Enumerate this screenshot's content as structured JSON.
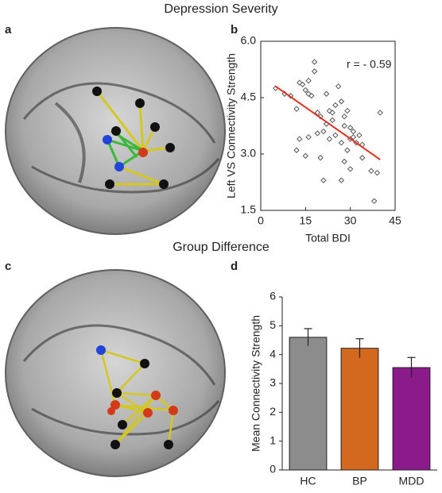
{
  "figure": {
    "titles": [
      "Depression Severity",
      "Group Difference"
    ],
    "panel_labels": [
      "a",
      "b",
      "c",
      "d"
    ]
  },
  "chart_data": [
    {
      "type": "scatter",
      "x_label": "Total BDI",
      "y_label": "Left VS Connectivity Strength",
      "annotation": "r = - 0.59",
      "color": "#555555",
      "x": [
        5,
        8,
        10,
        12,
        13,
        14,
        15,
        16,
        16,
        17,
        18,
        18,
        19,
        20,
        21,
        22,
        22,
        23,
        23,
        24,
        24,
        25,
        25,
        26,
        27,
        27,
        28,
        28,
        29,
        29,
        30,
        30,
        31,
        31,
        32,
        33,
        34,
        19,
        20,
        21,
        13,
        15,
        16,
        28,
        30,
        27,
        37,
        38,
        39,
        40,
        34,
        12
      ],
      "values": [
        4.75,
        4.6,
        4.55,
        4.2,
        4.9,
        4.85,
        4.7,
        4.95,
        4.6,
        4.55,
        5.45,
        5.2,
        4.1,
        4.0,
        3.6,
        3.8,
        4.6,
        4.15,
        3.4,
        4.1,
        3.9,
        4.3,
        3.5,
        4.8,
        4.4,
        3.3,
        4.0,
        3.75,
        4.15,
        3.1,
        3.7,
        3.4,
        3.6,
        3.45,
        3.3,
        3.5,
        3.25,
        3.55,
        2.9,
        2.3,
        3.4,
        2.95,
        3.45,
        2.8,
        2.6,
        2.3,
        2.55,
        1.75,
        2.5,
        4.1,
        2.9,
        3.1
      ],
      "trend_line": {
        "x": [
          5,
          40
        ],
        "y": [
          4.8,
          2.85
        ],
        "color": "#e0301e"
      },
      "xlim": [
        0,
        45
      ],
      "xticks": [
        0,
        15,
        30,
        45
      ],
      "ylim": [
        1.5,
        6
      ],
      "yticks": [
        1.5,
        {
          "value": 3,
          "label": "3.0"
        },
        4.5,
        {
          "value": 6,
          "label": "6.0"
        }
      ]
    },
    {
      "type": "bar",
      "y_label": "Mean Connectivity Strength",
      "categories": [
        "HC",
        "BP",
        "MDD"
      ],
      "values": [
        4.6,
        4.22,
        3.55
      ],
      "errors": [
        0.3,
        0.33,
        0.35
      ],
      "colors": [
        "#8c8c8c",
        "#d2691e",
        "#8b1a8b"
      ],
      "ylim": [
        0,
        6
      ],
      "yticks": [
        0,
        1,
        2,
        3,
        4,
        5,
        6
      ]
    }
  ]
}
